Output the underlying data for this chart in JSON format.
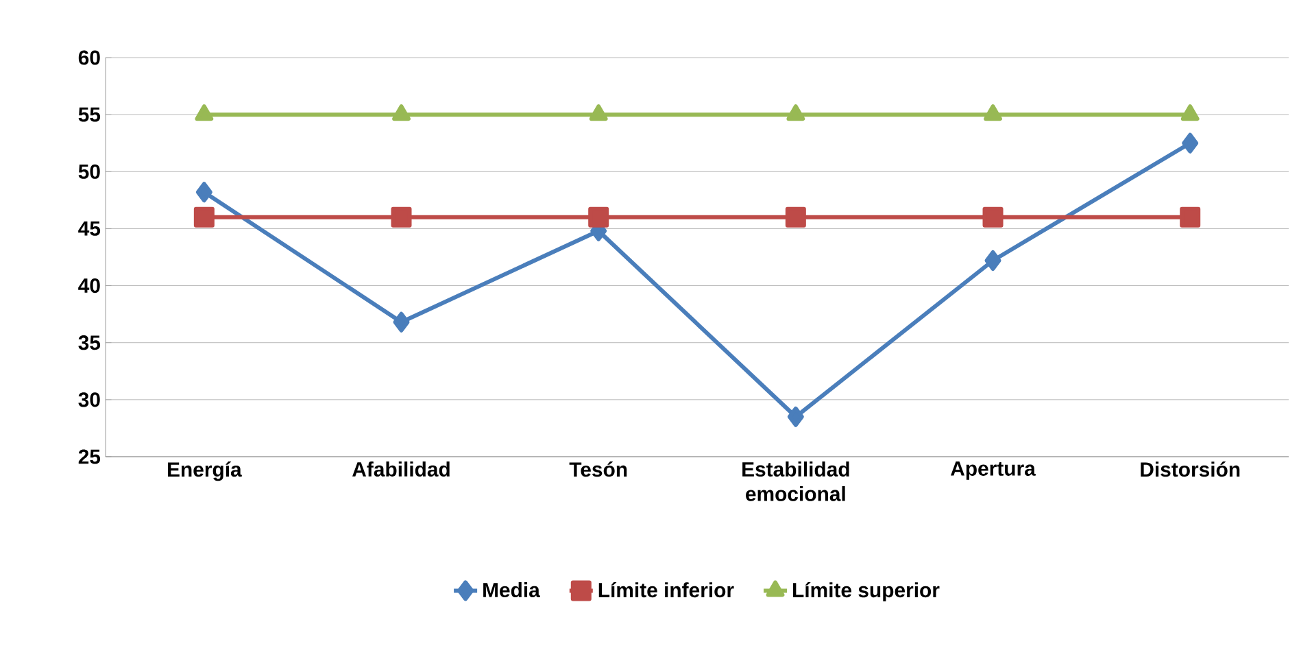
{
  "chart_data": {
    "type": "line",
    "categories": [
      "Energía",
      "Afabilidad",
      "Tesón",
      "Estabilidad emocional",
      "Apertura",
      "Distorsión"
    ],
    "series": [
      {
        "name": "Media",
        "color": "#4a7ebb",
        "marker": "diamond",
        "values": [
          48.2,
          36.8,
          44.8,
          28.5,
          42.2,
          52.5
        ]
      },
      {
        "name": "Límite inferior",
        "color": "#be4b48",
        "marker": "square",
        "values": [
          46,
          46,
          46,
          46,
          46,
          46
        ]
      },
      {
        "name": "Límite superior",
        "color": "#98b954",
        "marker": "triangle",
        "values": [
          55,
          55,
          55,
          55,
          55,
          55
        ]
      }
    ],
    "ylim": [
      25,
      60
    ],
    "yticks": [
      25,
      30,
      35,
      40,
      45,
      50,
      55,
      60
    ],
    "grid": "y",
    "legend": "bottom",
    "line_style": "solid"
  }
}
